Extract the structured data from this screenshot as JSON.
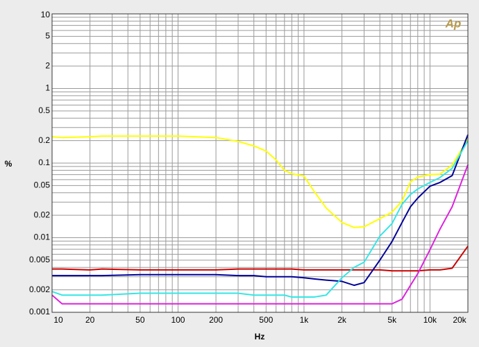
{
  "chart_data": {
    "type": "line",
    "x_label": "Hz",
    "y_label": "%",
    "logo": "Ap",
    "xscale": "log",
    "yscale": "log",
    "grid": true,
    "xlim": [
      10,
      20000
    ],
    "ylim": [
      0.001,
      10
    ],
    "xticks": [
      10,
      20,
      50,
      100,
      200,
      500,
      {
        "value": 1000,
        "label": "1k"
      },
      {
        "value": 2000,
        "label": "2k"
      },
      {
        "value": 5000,
        "label": "5k"
      },
      {
        "value": 10000,
        "label": "10k"
      },
      {
        "value": 20000,
        "label": "20k"
      }
    ],
    "xminorticks": [
      30,
      40,
      60,
      70,
      80,
      90,
      300,
      400,
      600,
      700,
      800,
      900,
      3000,
      4000,
      6000,
      7000,
      8000,
      9000
    ],
    "yticks": [
      0.001,
      0.002,
      0.005,
      0.01,
      0.02,
      0.05,
      0.1,
      0.2,
      0.5,
      1,
      2,
      5,
      10
    ],
    "yminorticks": [
      0.003,
      0.004,
      0.006,
      0.007,
      0.008,
      0.009,
      0.03,
      0.04,
      0.06,
      0.07,
      0.08,
      0.09,
      0.3,
      0.4,
      0.6,
      0.7,
      0.8,
      0.9,
      3,
      4,
      6,
      7,
      8,
      9
    ],
    "x": [
      10,
      12,
      20,
      25,
      50,
      100,
      200,
      300,
      400,
      500,
      600,
      700,
      800,
      1000,
      1200,
      1500,
      2000,
      2500,
      3000,
      4000,
      5000,
      6000,
      7000,
      8000,
      10000,
      12000,
      15000,
      20000
    ],
    "series": [
      {
        "color": "#ffff00",
        "values": [
          0.225,
          0.22,
          0.225,
          0.23,
          0.23,
          0.23,
          0.22,
          0.195,
          0.17,
          0.145,
          0.11,
          0.08,
          0.072,
          0.067,
          0.042,
          0.025,
          0.016,
          0.0137,
          0.014,
          0.018,
          0.022,
          0.031,
          0.056,
          0.065,
          0.07,
          0.071,
          0.094,
          0.21
        ]
      },
      {
        "color": "#cc0000",
        "values": [
          0.0038,
          0.0038,
          0.0037,
          0.0038,
          0.0037,
          0.0037,
          0.0037,
          0.0038,
          0.0038,
          0.0038,
          0.0038,
          0.0038,
          0.0038,
          0.0037,
          0.0037,
          0.0037,
          0.0037,
          0.0037,
          0.0037,
          0.0037,
          0.0036,
          0.0036,
          0.0036,
          0.0036,
          0.0037,
          0.0037,
          0.0039,
          0.0077
        ]
      },
      {
        "color": "#000099",
        "values": [
          0.0031,
          0.0031,
          0.0031,
          0.0031,
          0.0032,
          0.0032,
          0.0032,
          0.0031,
          0.0031,
          0.003,
          0.003,
          0.003,
          0.003,
          0.0029,
          0.0028,
          0.0027,
          0.0026,
          0.0023,
          0.0025,
          0.005,
          0.0089,
          0.016,
          0.026,
          0.034,
          0.049,
          0.055,
          0.068,
          0.24
        ]
      },
      {
        "color": "#33e6e6",
        "values": [
          0.0019,
          0.0017,
          0.0017,
          0.0017,
          0.0018,
          0.0018,
          0.0018,
          0.0018,
          0.0017,
          0.0017,
          0.0017,
          0.0017,
          0.0016,
          0.0016,
          0.0016,
          0.0017,
          0.0029,
          0.004,
          0.0047,
          0.0105,
          0.0155,
          0.028,
          0.038,
          0.045,
          0.055,
          0.064,
          0.085,
          0.2
        ]
      },
      {
        "color": "#dd22dd",
        "values": [
          0.0017,
          0.0013,
          0.0013,
          0.0013,
          0.0013,
          0.0013,
          0.0013,
          0.0013,
          0.0013,
          0.0013,
          0.0013,
          0.0013,
          0.0013,
          0.0013,
          0.0013,
          0.0013,
          0.0013,
          0.0013,
          0.0013,
          0.0013,
          0.0013,
          0.0015,
          0.0023,
          0.0033,
          0.0069,
          0.013,
          0.026,
          0.095
        ]
      }
    ]
  }
}
